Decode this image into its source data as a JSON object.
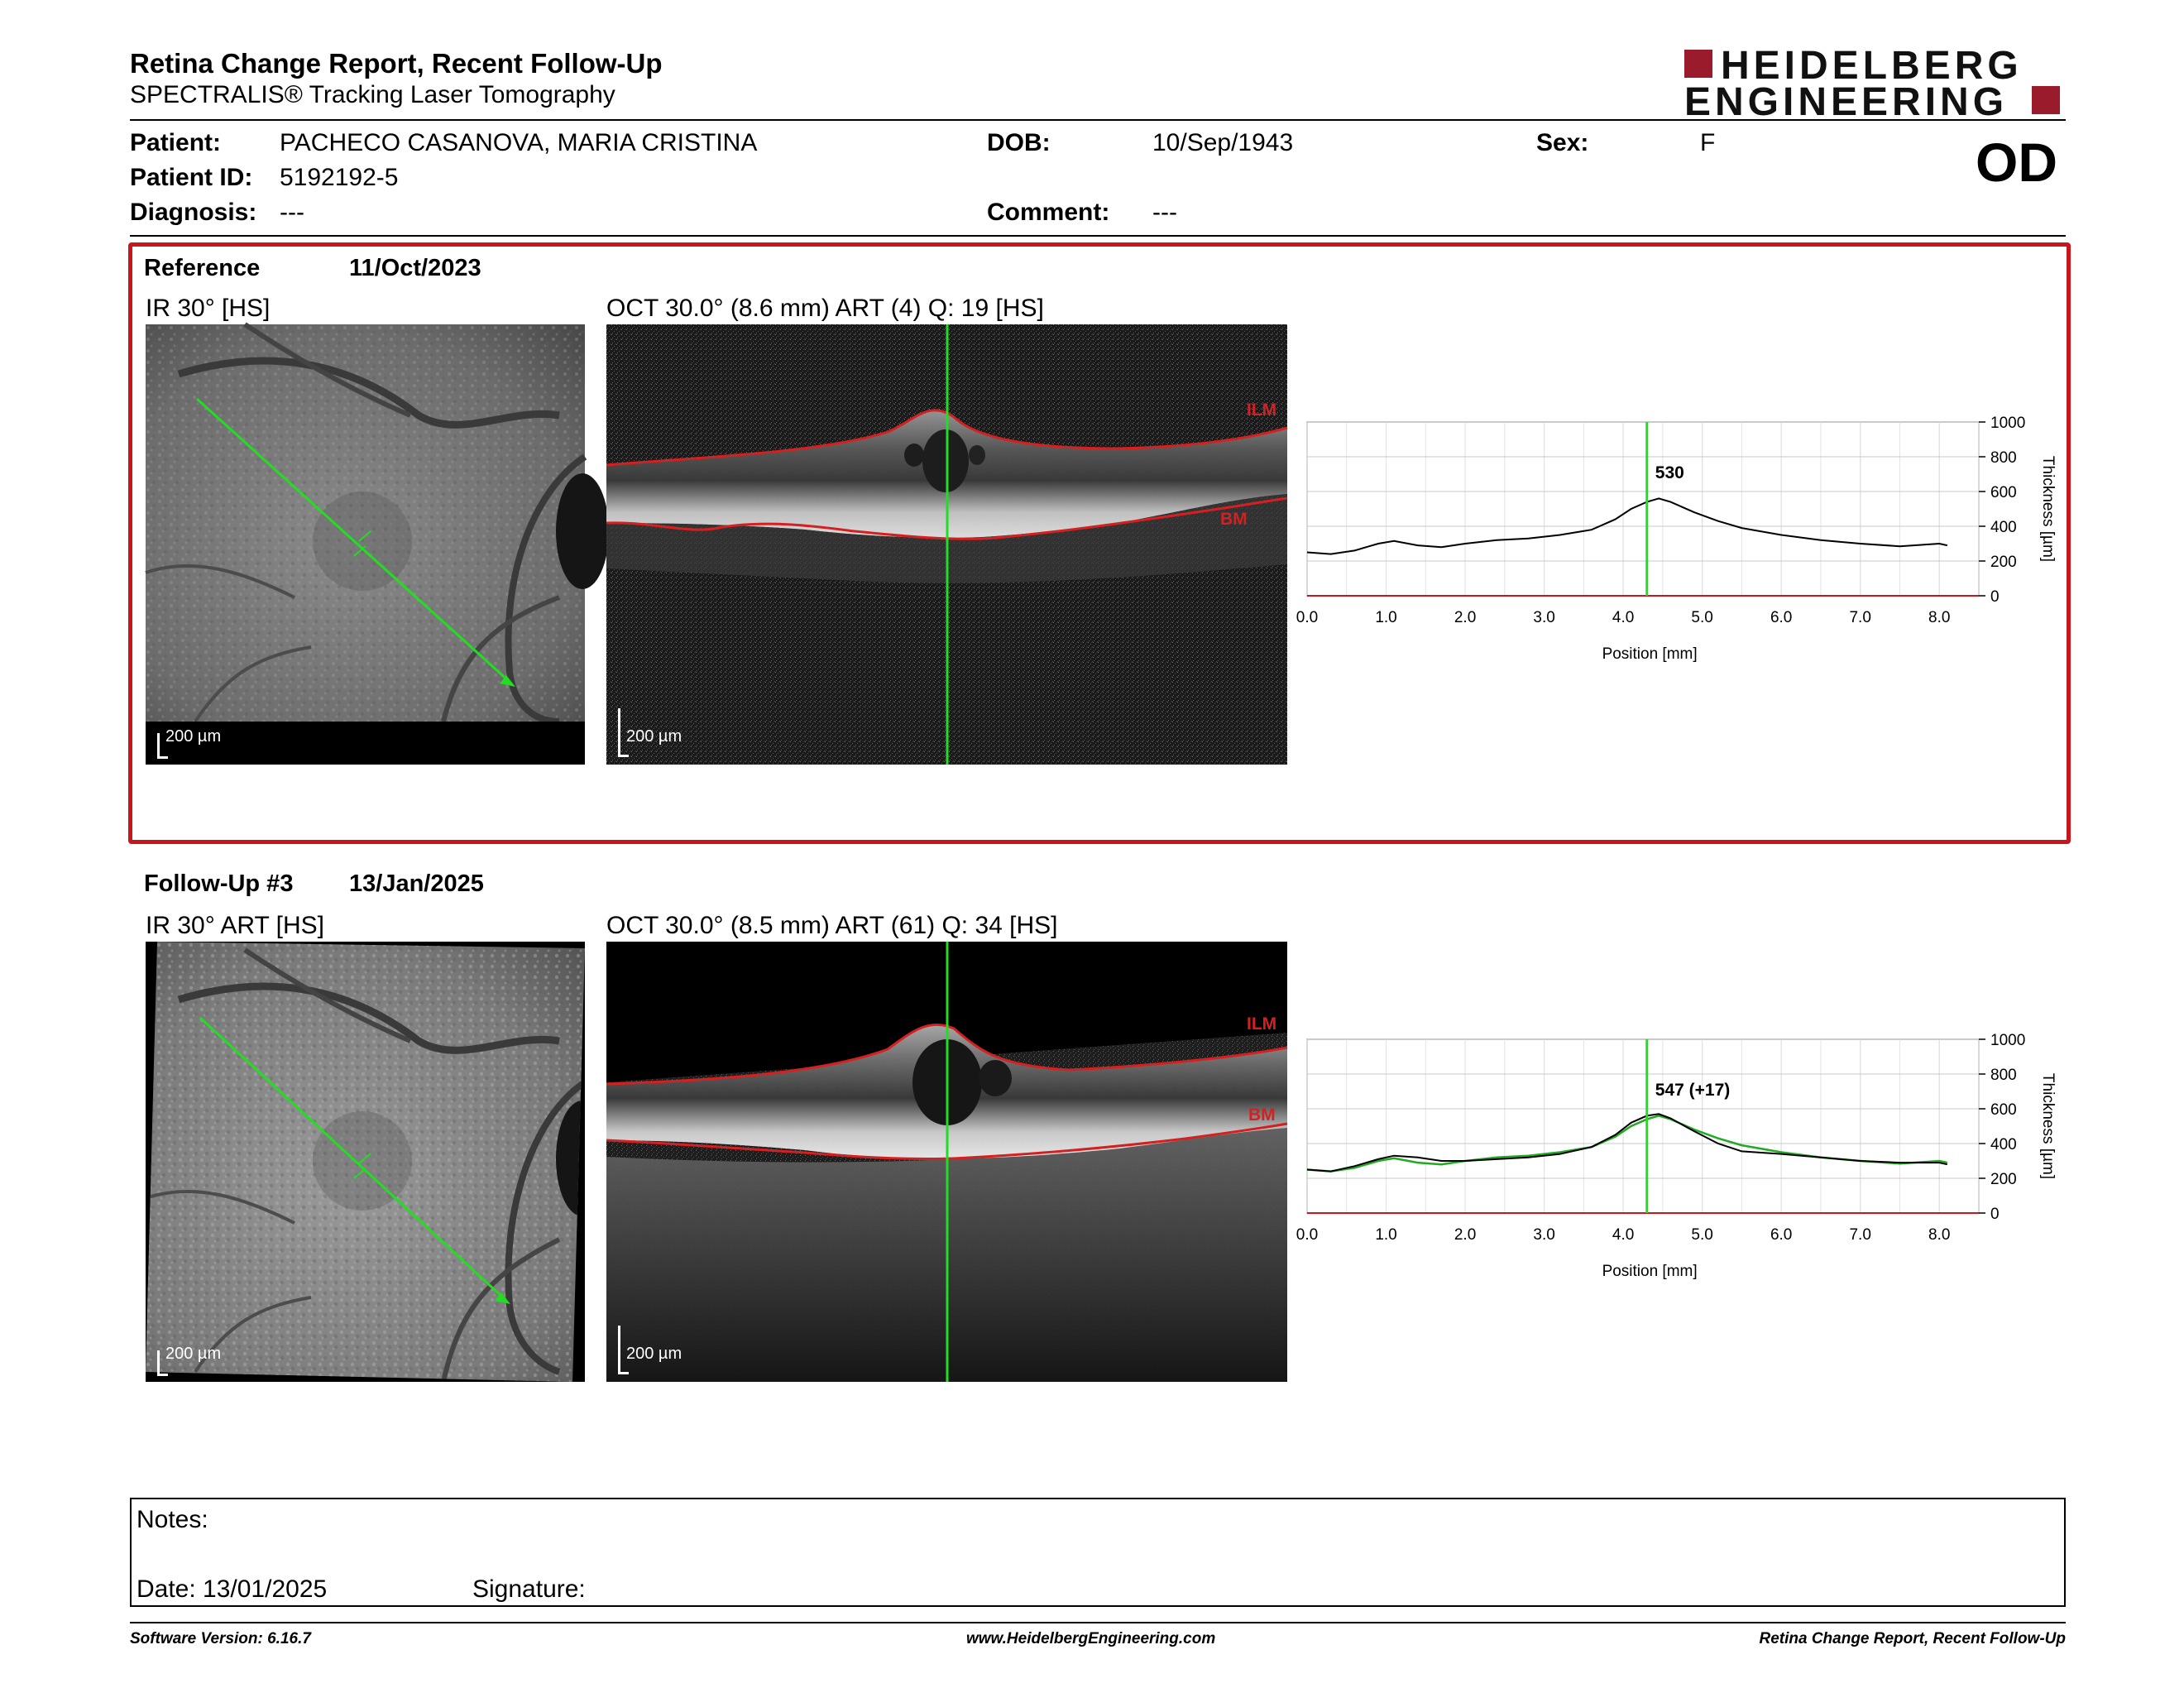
{
  "header": {
    "title": "Retina Change Report, Recent Follow-Up",
    "subtitle": "SPECTRALIS® Tracking Laser Tomography",
    "logo_line1": "HEIDELBERG",
    "logo_line2": "ENGINEERING",
    "eye": "OD"
  },
  "patient": {
    "name_label": "Patient:",
    "name": "PACHECO CASANOVA, MARIA CRISTINA",
    "dob_label": "DOB:",
    "dob": "10/Sep/1943",
    "sex_label": "Sex:",
    "sex": "F",
    "id_label": "Patient ID:",
    "id": "5192192-5",
    "diagnosis_label": "Diagnosis:",
    "diagnosis": "---",
    "comment_label": "Comment:",
    "comment": "---"
  },
  "reference": {
    "label": "Reference",
    "date": "11/Oct/2023",
    "ir_title": "IR 30° [HS]",
    "oct_title": "OCT 30.0° (8.6 mm) ART (4) Q: 19 [HS]",
    "scale_ir": "200 µm",
    "scale_oct": "200 µm",
    "ilm": "ILM",
    "bm": "BM"
  },
  "followup": {
    "label": "Follow-Up #3",
    "date": "13/Jan/2025",
    "ir_title": "IR 30° ART [HS]",
    "oct_title": "OCT 30.0° (8.5 mm) ART (61) Q: 34 [HS]",
    "scale_ir": "200 µm",
    "scale_oct": "200 µm",
    "ilm": "ILM",
    "bm": "BM"
  },
  "colors": {
    "accent": "#c8161d",
    "marker": "#22dd22",
    "layer": "#d42020",
    "logo": "#9a1b2b"
  },
  "chart_data": [
    {
      "type": "line",
      "xlabel": "Position [mm]",
      "ylabel": "Thickness [µm]",
      "xlim": [
        0,
        8.5
      ],
      "ylim": [
        0,
        1000
      ],
      "xticks": [
        "0.0",
        "1.0",
        "2.0",
        "3.0",
        "4.0",
        "5.0",
        "6.0",
        "7.0",
        "8.0"
      ],
      "yticks": [
        "0",
        "200",
        "400",
        "600",
        "800",
        "1000"
      ],
      "grid": true,
      "marker_x": 4.3,
      "marker_label": "530",
      "series": [
        {
          "x": [
            0,
            0.3,
            0.6,
            0.9,
            1.1,
            1.4,
            1.7,
            2.0,
            2.4,
            2.8,
            3.2,
            3.6,
            3.9,
            4.1,
            4.3,
            4.45,
            4.6,
            4.9,
            5.2,
            5.5,
            6.0,
            6.5,
            7.0,
            7.5,
            8.0,
            8.1
          ],
          "y": [
            250,
            240,
            260,
            300,
            315,
            290,
            280,
            300,
            320,
            330,
            350,
            380,
            440,
            500,
            540,
            560,
            540,
            480,
            430,
            390,
            350,
            320,
            300,
            285,
            300,
            290
          ]
        }
      ]
    },
    {
      "type": "line",
      "xlabel": "Position [mm]",
      "ylabel": "Thickness [µm]",
      "xlim": [
        0,
        8.5
      ],
      "ylim": [
        0,
        1000
      ],
      "xticks": [
        "0.0",
        "1.0",
        "2.0",
        "3.0",
        "4.0",
        "5.0",
        "6.0",
        "7.0",
        "8.0"
      ],
      "yticks": [
        "0",
        "200",
        "400",
        "600",
        "800",
        "1000"
      ],
      "grid": true,
      "marker_x": 4.3,
      "marker_label": "547 (+17)",
      "series": [
        {
          "x": [
            0,
            0.3,
            0.6,
            0.9,
            1.1,
            1.4,
            1.7,
            2.0,
            2.4,
            2.8,
            3.2,
            3.6,
            3.9,
            4.1,
            4.3,
            4.45,
            4.6,
            4.9,
            5.2,
            5.5,
            6.0,
            6.5,
            7.0,
            7.5,
            8.0,
            8.1
          ],
          "y": [
            250,
            240,
            270,
            310,
            330,
            320,
            300,
            300,
            310,
            320,
            340,
            380,
            450,
            520,
            560,
            570,
            545,
            470,
            400,
            355,
            340,
            320,
            300,
            290,
            290,
            280
          ]
        },
        {
          "x": [
            0,
            0.3,
            0.6,
            0.9,
            1.1,
            1.4,
            1.7,
            2.0,
            2.4,
            2.8,
            3.2,
            3.6,
            3.9,
            4.1,
            4.3,
            4.45,
            4.6,
            4.9,
            5.2,
            5.5,
            6.0,
            6.5,
            7.0,
            7.5,
            8.0,
            8.1
          ],
          "y": [
            250,
            240,
            260,
            300,
            315,
            290,
            280,
            300,
            320,
            330,
            350,
            380,
            440,
            500,
            540,
            560,
            540,
            480,
            430,
            390,
            350,
            320,
            300,
            285,
            300,
            290
          ]
        }
      ]
    }
  ],
  "notes": {
    "notes_label": "Notes:",
    "date_text": "Date: 13/01/2025",
    "signature_label": "Signature:"
  },
  "footer": {
    "left": "Software Version: 6.16.7",
    "center": "www.HeidelbergEngineering.com",
    "right": "Retina Change Report, Recent Follow-Up"
  }
}
